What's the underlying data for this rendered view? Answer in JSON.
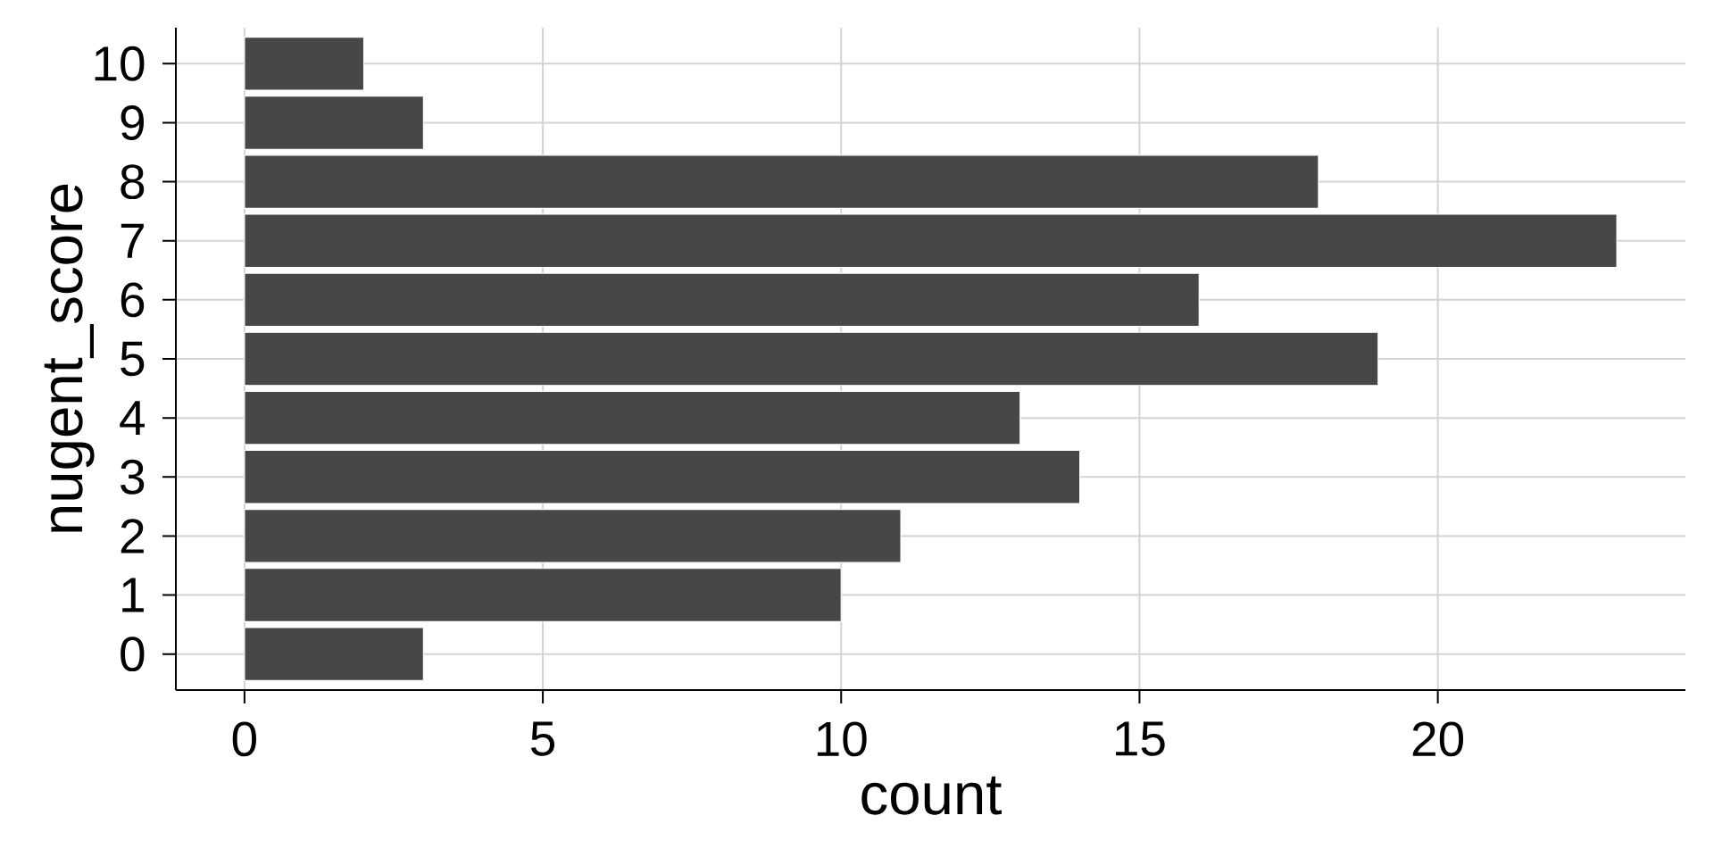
{
  "chart_data": {
    "type": "bar",
    "orientation": "horizontal",
    "xlabel": "count",
    "ylabel": "nugent_score",
    "categories": [
      "10",
      "9",
      "8",
      "7",
      "6",
      "5",
      "4",
      "3",
      "2",
      "1",
      "0"
    ],
    "values": [
      2,
      3,
      18,
      23,
      16,
      19,
      13,
      14,
      11,
      10,
      3
    ],
    "color": "#474747",
    "xlim": [
      -1.15,
      24.15
    ],
    "xticks": [
      0,
      5,
      10,
      15,
      20
    ],
    "grid": true
  }
}
